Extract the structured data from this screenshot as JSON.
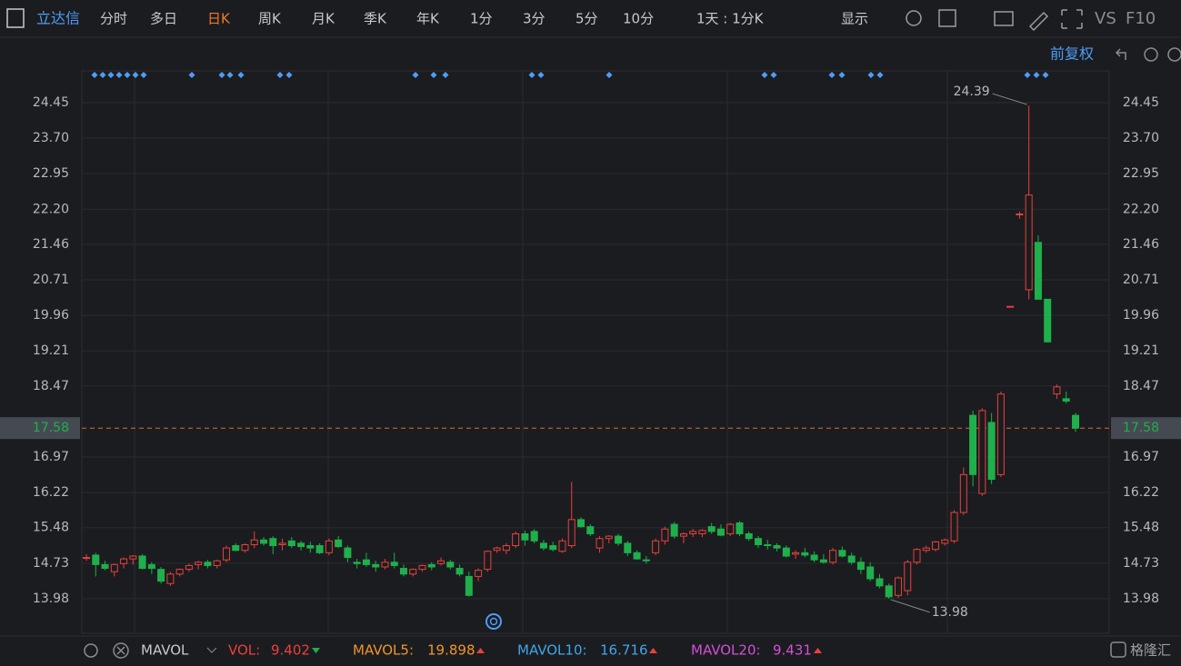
{
  "toolbar": {
    "stock": "立达信",
    "tabs": [
      "分时",
      "多日",
      "日K",
      "周K",
      "月K",
      "季K",
      "年K",
      "1分",
      "3分",
      "5分",
      "10分"
    ],
    "period": "1天 : 1分K",
    "display": "显示",
    "vs": "VS",
    "f10": "F10",
    "adjust": "前复权"
  },
  "chart_data": {
    "type": "candlestick",
    "up_color": "#e8413c",
    "down_color": "#1fb04c",
    "ylim": [
      13.25,
      25.12
    ],
    "yticks": [
      24.45,
      {
        "value": 23.7,
        "label": "23.70"
      },
      22.95,
      {
        "value": 22.2,
        "label": "22.20"
      },
      21.46,
      20.71,
      19.96,
      19.21,
      18.47,
      16.97,
      16.22,
      15.48,
      14.73,
      13.98
    ],
    "last_price": 17.58,
    "high_label": 24.39,
    "low_label": 13.98,
    "open": [
      14.85,
      14.9,
      14.7,
      14.55,
      14.72,
      14.82,
      14.88,
      14.7,
      14.6,
      14.3,
      14.5,
      14.6,
      14.7,
      14.75,
      14.68,
      14.8,
      15.1,
      15.0,
      15.12,
      15.22,
      15.25,
      15.12,
      15.2,
      15.15,
      15.1,
      15.1,
      14.95,
      15.22,
      15.05,
      14.75,
      14.8,
      14.7,
      14.65,
      14.75,
      14.62,
      14.5,
      14.6,
      14.7,
      14.72,
      14.75,
      14.62,
      14.45,
      14.45,
      14.6,
      15.0,
      15.0,
      15.1,
      15.35,
      15.4,
      15.15,
      15.1,
      14.98,
      15.1,
      15.65,
      15.5,
      15.05,
      15.25,
      15.3,
      15.15,
      14.95,
      14.8,
      14.95,
      15.2,
      15.55,
      15.3,
      15.35,
      15.35,
      15.5,
      15.45,
      15.35,
      15.58,
      15.35,
      15.25,
      15.12,
      15.1,
      15.05,
      14.92,
      14.95,
      14.9,
      14.8,
      14.75,
      15.0,
      14.88,
      14.75,
      14.65,
      14.4,
      14.25,
      14.05,
      14.15,
      14.75,
      15.0,
      15.02,
      15.15,
      15.2,
      15.8,
      17.85,
      16.2,
      17.7,
      16.6,
      20.15,
      22.1,
      20.5,
      21.5,
      20.3,
      18.3,
      18.2,
      17.85
    ],
    "high": [
      14.92,
      14.95,
      14.78,
      14.72,
      14.85,
      14.9,
      14.92,
      14.75,
      14.65,
      14.55,
      14.62,
      14.72,
      14.78,
      14.8,
      14.8,
      15.1,
      15.15,
      15.15,
      15.4,
      15.28,
      15.3,
      15.25,
      15.28,
      15.2,
      15.18,
      15.15,
      15.25,
      15.3,
      15.1,
      14.82,
      14.95,
      14.78,
      14.82,
      14.95,
      14.7,
      14.62,
      14.7,
      14.75,
      14.85,
      14.8,
      14.7,
      14.55,
      14.62,
      15.0,
      15.08,
      15.15,
      15.4,
      15.42,
      15.45,
      15.22,
      15.18,
      15.25,
      16.45,
      15.7,
      15.55,
      15.3,
      15.32,
      15.35,
      15.2,
      15.0,
      14.88,
      15.25,
      15.5,
      15.6,
      15.38,
      15.45,
      15.45,
      15.58,
      15.55,
      15.58,
      15.62,
      15.4,
      15.3,
      15.22,
      15.15,
      15.1,
      15.0,
      15.05,
      14.98,
      14.92,
      15.05,
      15.08,
      14.95,
      14.85,
      14.75,
      14.5,
      14.3,
      14.45,
      14.8,
      15.05,
      15.1,
      15.2,
      15.25,
      15.85,
      16.75,
      17.95,
      18.0,
      17.9,
      18.35,
      20.15,
      22.15,
      24.39,
      21.65,
      20.3,
      18.5,
      18.35,
      17.9
    ],
    "low": [
      14.78,
      14.45,
      14.58,
      14.45,
      14.62,
      14.7,
      14.6,
      14.5,
      14.3,
      14.25,
      14.45,
      14.55,
      14.6,
      14.62,
      14.62,
      14.75,
      14.98,
      14.95,
      15.05,
      15.1,
      14.92,
      15.0,
      15.05,
      15.0,
      14.95,
      14.92,
      14.9,
      15.05,
      14.75,
      14.62,
      14.65,
      14.55,
      14.6,
      14.62,
      14.45,
      14.45,
      14.55,
      14.58,
      14.68,
      14.6,
      14.45,
      14.02,
      14.35,
      14.55,
      14.95,
      14.92,
      15.05,
      15.1,
      15.15,
      15.0,
      14.98,
      14.95,
      15.05,
      15.48,
      15.3,
      14.95,
      15.15,
      15.1,
      14.88,
      14.8,
      14.72,
      14.9,
      15.12,
      15.25,
      15.15,
      15.28,
      15.28,
      15.35,
      15.3,
      15.3,
      15.3,
      15.2,
      15.05,
      15.02,
      14.98,
      14.85,
      14.82,
      14.85,
      14.75,
      14.72,
      14.7,
      14.85,
      14.7,
      14.5,
      14.35,
      14.2,
      13.98,
      14.0,
      14.05,
      14.7,
      14.95,
      14.98,
      15.1,
      15.15,
      15.75,
      16.35,
      16.15,
      16.4,
      16.55,
      20.15,
      22.0,
      20.3,
      20.3,
      19.4,
      18.2,
      18.1,
      17.5
    ],
    "close": [
      14.85,
      14.7,
      14.62,
      14.7,
      14.82,
      14.88,
      14.62,
      14.62,
      14.35,
      14.5,
      14.6,
      14.68,
      14.75,
      14.68,
      14.78,
      15.05,
      15.0,
      15.12,
      15.22,
      15.15,
      15.1,
      15.15,
      15.1,
      15.08,
      15.05,
      14.95,
      15.2,
      15.08,
      14.85,
      14.72,
      14.7,
      14.65,
      14.75,
      14.68,
      14.5,
      14.6,
      14.68,
      14.65,
      14.78,
      14.65,
      14.5,
      14.05,
      14.58,
      14.98,
      15.05,
      15.1,
      15.35,
      15.22,
      15.2,
      15.05,
      15.02,
      15.2,
      15.65,
      15.5,
      15.35,
      15.25,
      15.3,
      15.15,
      14.95,
      14.82,
      14.78,
      15.2,
      15.45,
      15.3,
      15.35,
      15.4,
      15.42,
      15.4,
      15.32,
      15.55,
      15.35,
      15.25,
      15.12,
      15.1,
      15.05,
      14.88,
      14.95,
      14.9,
      14.8,
      14.75,
      15.0,
      14.88,
      14.75,
      14.6,
      14.4,
      14.25,
      14.02,
      14.42,
      14.75,
      15.02,
      15.05,
      15.18,
      15.22,
      15.8,
      16.6,
      16.6,
      17.95,
      16.5,
      18.3,
      20.15,
      22.1,
      22.5,
      20.3,
      19.4,
      18.45,
      18.15,
      17.58
    ]
  },
  "indicator": {
    "name": "MAVOL",
    "vol_label": "VOL:",
    "vol": 9.402,
    "ma5_label": "MAVOL5:",
    "ma5": 19.898,
    "ma10_label": "MAVOL10:",
    "ma10": 16.716,
    "ma20_label": "MAVOL20:",
    "ma20": 9.431,
    "brand": "格隆汇"
  }
}
